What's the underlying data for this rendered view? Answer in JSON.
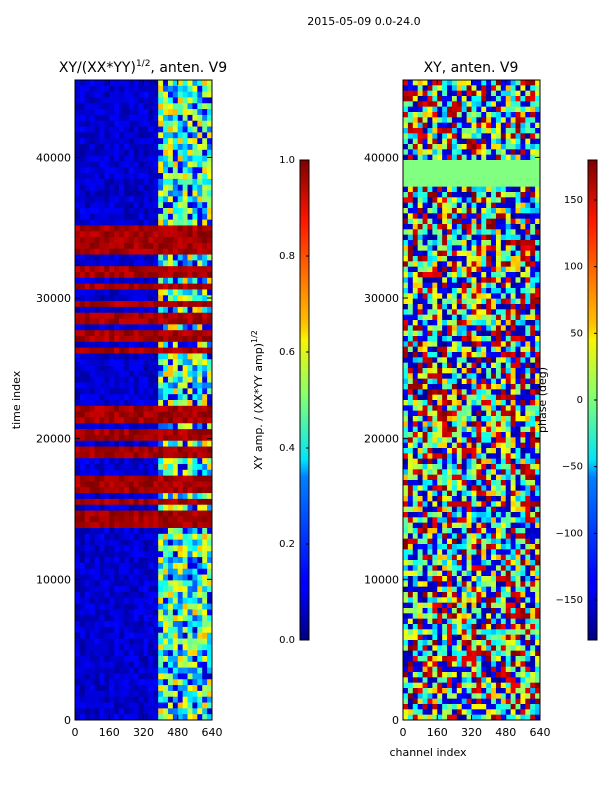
{
  "figure_title": "2015-05-09 0.0-24.0",
  "chart_data": [
    {
      "type": "heatmap",
      "title_main": "XY/(XX*YY)",
      "title_exp": "1/2",
      "title_suffix": ", anten. V9",
      "xlabel": "",
      "ylabel": "time index",
      "xlim": [
        0,
        640
      ],
      "ylim": [
        0,
        45500
      ],
      "x_ticks": [
        0,
        160,
        320,
        480,
        640
      ],
      "y_ticks": [
        0,
        10000,
        20000,
        30000,
        40000
      ],
      "x_tick_labels": [
        "0",
        "160",
        "320",
        "480",
        "640"
      ],
      "y_tick_labels": [
        "0",
        "10000",
        "20000",
        "30000",
        "40000"
      ],
      "colorbar": {
        "label_main": "XY amp. / (XX*YY amp)",
        "label_exp": "1/2",
        "range": [
          0.0,
          1.0
        ],
        "ticks": [
          0.0,
          0.2,
          0.4,
          0.6,
          0.8,
          1.0
        ],
        "tick_labels": [
          "0.0",
          "0.2",
          "0.4",
          "0.6",
          "0.8",
          "1.0"
        ],
        "colormap": "jet"
      },
      "red_band_ranges": [
        [
          13500,
          22500
        ],
        [
          26200,
          35000
        ]
      ],
      "bright_channel_range": [
        400,
        640
      ]
    },
    {
      "type": "heatmap",
      "title_main": "XY, anten. V9",
      "title_exp": "",
      "title_suffix": "",
      "xlabel": "channel index",
      "ylabel": "",
      "xlim": [
        0,
        640
      ],
      "ylim": [
        0,
        45500
      ],
      "x_ticks": [
        0,
        160,
        320,
        480,
        640
      ],
      "y_ticks": [
        0,
        10000,
        20000,
        30000,
        40000
      ],
      "x_tick_labels": [
        "0",
        "160",
        "320",
        "480",
        "640"
      ],
      "y_tick_labels": [
        "0",
        "10000",
        "20000",
        "30000",
        "40000"
      ],
      "colorbar": {
        "label_main": "phase (deg)",
        "label_exp": "",
        "range": [
          -180,
          180
        ],
        "ticks": [
          -150,
          -100,
          -50,
          0,
          50,
          100,
          150
        ],
        "tick_labels": [
          "−150",
          "−100",
          "−50",
          "0",
          "50",
          "100",
          "150"
        ],
        "colormap": "jet"
      },
      "flat_band_range": [
        37800,
        40000
      ]
    }
  ],
  "colors": {
    "jet_low": "#00007f",
    "jet_mid": "#7cff79",
    "jet_high": "#7f0000",
    "axis": "#000000"
  }
}
